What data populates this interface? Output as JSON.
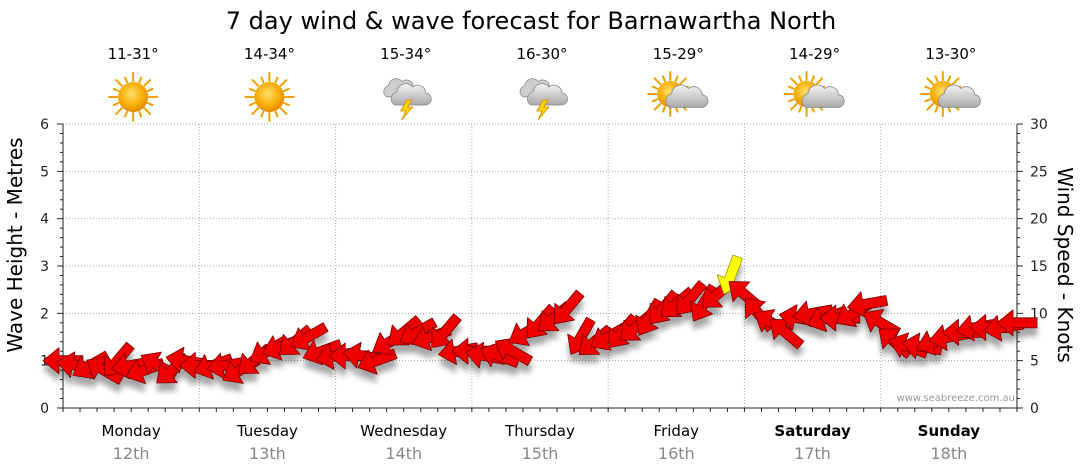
{
  "chart_data": {
    "type": "line",
    "title": "7 day wind & wave forecast for Barnawartha North",
    "y_left_label": "Wave Height - Metres",
    "y_right_label": "Wind Speed - Knots",
    "y_left_lim": [
      0,
      6
    ],
    "y_right_lim": [
      0,
      30
    ],
    "y_left_ticks": [
      "0",
      "1",
      "2",
      "3",
      "4",
      "5",
      "6"
    ],
    "y_right_ticks": [
      "0",
      "5",
      "10",
      "15",
      "20",
      "25",
      "30"
    ],
    "grid": true,
    "credit": "www.seabreeze.com.au",
    "days": [
      {
        "name": "Monday",
        "date": "12th",
        "temp": "11-31°",
        "weather": "sunny",
        "bold": false
      },
      {
        "name": "Tuesday",
        "date": "13th",
        "temp": "14-34°",
        "weather": "sunny",
        "bold": false
      },
      {
        "name": "Wednesday",
        "date": "14th",
        "temp": "15-34°",
        "weather": "storm",
        "bold": false
      },
      {
        "name": "Thursday",
        "date": "15th",
        "temp": "16-30°",
        "weather": "storm",
        "bold": false
      },
      {
        "name": "Friday",
        "date": "16th",
        "temp": "15-29°",
        "weather": "partly-cloudy",
        "bold": false
      },
      {
        "name": "Saturday",
        "date": "17th",
        "temp": "14-29°",
        "weather": "partly-cloudy",
        "bold": true
      },
      {
        "name": "Sunday",
        "date": "18th",
        "temp": "13-30°",
        "weather": "partly-cloudy",
        "bold": true
      }
    ],
    "series": [
      {
        "type": "wind",
        "unit": "knots",
        "color_normal": "#ee0000",
        "color_strong": "#ffff00",
        "x_day": [
          0,
          0.1,
          0.2,
          0.3,
          0.4,
          0.5,
          0.6,
          0.7,
          0.8,
          0.9,
          1.0,
          1.1,
          1.2,
          1.3,
          1.4,
          1.5,
          1.6,
          1.7,
          1.8,
          1.9,
          2.0,
          2.1,
          2.2,
          2.3,
          2.4,
          2.5,
          2.6,
          2.7,
          2.8,
          2.9,
          3.0,
          3.1,
          3.2,
          3.3,
          3.4,
          3.5,
          3.6,
          3.7,
          3.8,
          3.9,
          4.0,
          4.1,
          4.2,
          4.3,
          4.4,
          4.5,
          4.6,
          4.7,
          4.8,
          4.9,
          5.0,
          5.1,
          5.2,
          5.3,
          5.4,
          5.5,
          5.6,
          5.7,
          5.8,
          5.9,
          6.0,
          6.1,
          6.2,
          6.3,
          6.4,
          6.5,
          6.6,
          6.7,
          6.8,
          6.9,
          7.0
        ],
        "values": [
          5,
          4.5,
          4.5,
          4,
          5,
          4.5,
          4,
          4.5,
          4,
          5,
          4.5,
          4.5,
          4.5,
          4,
          5,
          6,
          6.5,
          7,
          7.5,
          6,
          5.5,
          5.5,
          5.5,
          5,
          7,
          8,
          8,
          7.5,
          8,
          6,
          6,
          5.5,
          5.5,
          6,
          8,
          9,
          9.5,
          10.5,
          7.5,
          7,
          7.5,
          8,
          8.5,
          9.5,
          10.5,
          11,
          11.5,
          11,
          12,
          14,
          12,
          10,
          9,
          8,
          9.5,
          10,
          9.5,
          9.5,
          10,
          11,
          9,
          7,
          6.5,
          6.5,
          7,
          7.5,
          8,
          8.5,
          8.5,
          8.5,
          9
        ],
        "direction_deg": [
          270,
          280,
          240,
          300,
          220,
          260,
          250,
          300,
          230,
          280,
          270,
          250,
          260,
          240,
          230,
          240,
          250,
          230,
          240,
          250,
          260,
          270,
          280,
          250,
          240,
          230,
          240,
          250,
          220,
          260,
          270,
          280,
          290,
          300,
          240,
          220,
          230,
          220,
          210,
          230,
          240,
          220,
          230,
          210,
          220,
          230,
          220,
          210,
          230,
          200,
          310,
          320,
          300,
          310,
          280,
          260,
          250,
          270,
          240,
          260,
          300,
          310,
          290,
          280,
          250,
          260,
          270,
          260,
          270,
          260,
          270
        ]
      }
    ]
  }
}
